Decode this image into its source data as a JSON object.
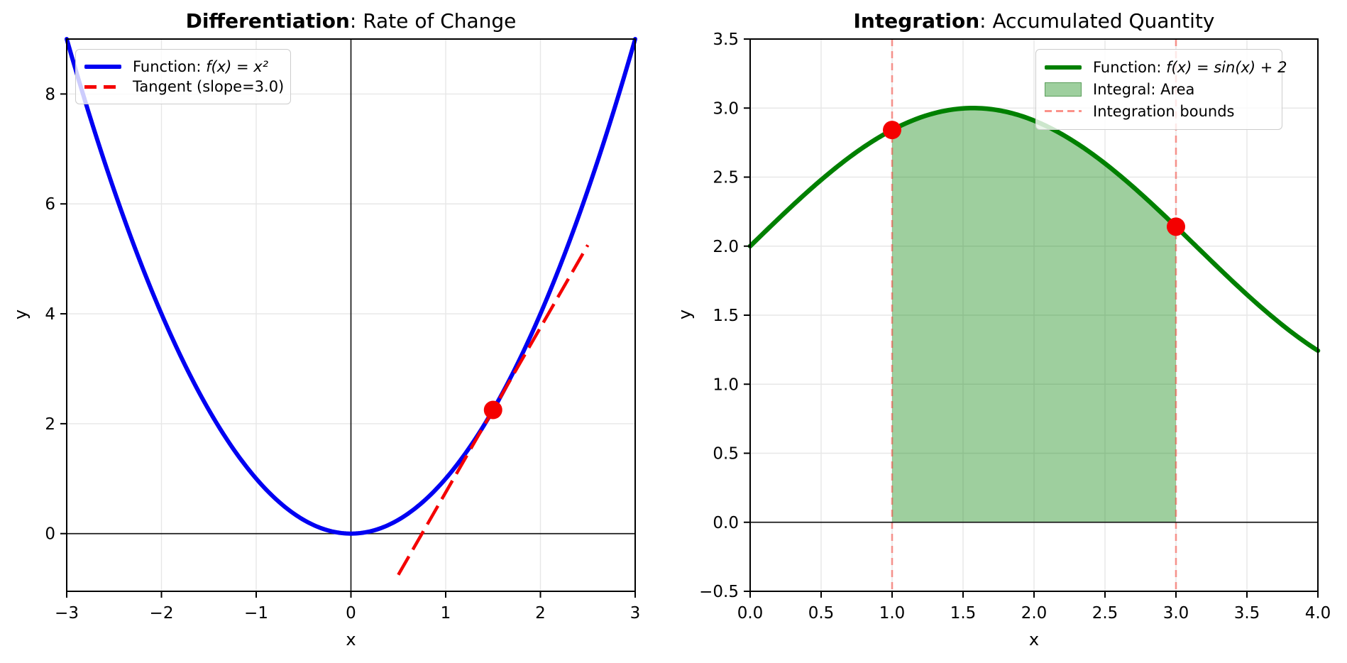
{
  "figure": {
    "background": "#ffffff"
  },
  "chart_data": [
    {
      "id": "differentiation",
      "type": "line",
      "title": {
        "bold": "Differentiation",
        "rest": ": Rate of Change"
      },
      "xlabel": "x",
      "ylabel": "y",
      "xlim": [
        -3,
        3
      ],
      "ylim": [
        -1.05,
        9.0
      ],
      "grid": true,
      "xticks": [
        {
          "v": -3,
          "label": "−3"
        },
        {
          "v": -2,
          "label": "−2"
        },
        {
          "v": -1,
          "label": "−1"
        },
        {
          "v": 0,
          "label": "0"
        },
        {
          "v": 1,
          "label": "1"
        },
        {
          "v": 2,
          "label": "2"
        },
        {
          "v": 3,
          "label": "3"
        }
      ],
      "yticks": [
        {
          "v": 0,
          "label": "0"
        },
        {
          "v": 2,
          "label": "2"
        },
        {
          "v": 4,
          "label": "4"
        },
        {
          "v": 6,
          "label": "6"
        },
        {
          "v": 8,
          "label": "8"
        }
      ],
      "ref_lines": {
        "horizontal": [
          0
        ],
        "vertical": [
          0
        ]
      },
      "series": [
        {
          "name": "function",
          "formula": "x**2",
          "x_range": [
            -3,
            3
          ],
          "color": "#0000f2",
          "width": 6,
          "style": "solid"
        },
        {
          "name": "tangent",
          "kind": "tangent",
          "point": [
            1.5,
            2.25
          ],
          "slope": 3.0,
          "x_range": [
            0.5,
            2.5
          ],
          "color": "#f40000",
          "width": 4.5,
          "style": "dashed"
        }
      ],
      "points": [
        {
          "x": 1.5,
          "y": 2.25,
          "color": "#f40000",
          "radius": 13
        }
      ],
      "legend": [
        {
          "plain": "Function: ",
          "math": "f(x) = x²",
          "swatch": "line",
          "color": "#0000f2"
        },
        {
          "plain": "Tangent (slope=3.0)",
          "math": "",
          "swatch": "dash",
          "color": "#f40000"
        }
      ]
    },
    {
      "id": "integration",
      "type": "area",
      "title": {
        "bold": "Integration",
        "rest": ": Accumulated Quantity"
      },
      "xlabel": "x",
      "ylabel": "y",
      "xlim": [
        0,
        4
      ],
      "ylim": [
        -0.5,
        3.5
      ],
      "grid": true,
      "xticks": [
        {
          "v": 0,
          "label": "0.0"
        },
        {
          "v": 0.5,
          "label": "0.5"
        },
        {
          "v": 1,
          "label": "1.0"
        },
        {
          "v": 1.5,
          "label": "1.5"
        },
        {
          "v": 2,
          "label": "2.0"
        },
        {
          "v": 2.5,
          "label": "2.5"
        },
        {
          "v": 3,
          "label": "3.0"
        },
        {
          "v": 3.5,
          "label": "3.5"
        },
        {
          "v": 4,
          "label": "4.0"
        }
      ],
      "yticks": [
        {
          "v": -0.5,
          "label": "−0.5"
        },
        {
          "v": 0,
          "label": "0.0"
        },
        {
          "v": 0.5,
          "label": "0.5"
        },
        {
          "v": 1,
          "label": "1.0"
        },
        {
          "v": 1.5,
          "label": "1.5"
        },
        {
          "v": 2,
          "label": "2.0"
        },
        {
          "v": 2.5,
          "label": "2.5"
        },
        {
          "v": 3,
          "label": "3.0"
        },
        {
          "v": 3.5,
          "label": "3.5"
        }
      ],
      "ref_lines": {
        "horizontal": [
          0
        ],
        "vertical": []
      },
      "series": [
        {
          "name": "function",
          "formula": "sin(x)+2",
          "x_range": [
            0,
            4
          ],
          "color": "#008000",
          "width": 6.5,
          "style": "solid"
        }
      ],
      "integral_region": {
        "from_x": 1.0,
        "to_x": 3.0,
        "baseline_y": 0,
        "fill_color": "rgba(0,128,0,0.38)"
      },
      "bounds": {
        "x": [
          1.0,
          3.0
        ],
        "color": "rgba(248,70,60,0.55)",
        "width": 2.6
      },
      "points": [
        {
          "x": 1.0,
          "y": 2.841,
          "color": "#f40000",
          "radius": 13
        },
        {
          "x": 3.0,
          "y": 2.141,
          "color": "#f40000",
          "radius": 13
        }
      ],
      "legend": [
        {
          "plain": "Function: ",
          "math": "f(x) = sin(x) + 2",
          "swatch": "line",
          "color": "#008000"
        },
        {
          "plain": "Integral: Area",
          "math": "",
          "swatch": "patch",
          "color": "#5a9e5a",
          "fill": "rgba(0,128,0,0.38)"
        },
        {
          "plain": "Integration bounds",
          "math": "",
          "swatch": "dash-thin",
          "color": "#f84a3c"
        }
      ]
    }
  ]
}
